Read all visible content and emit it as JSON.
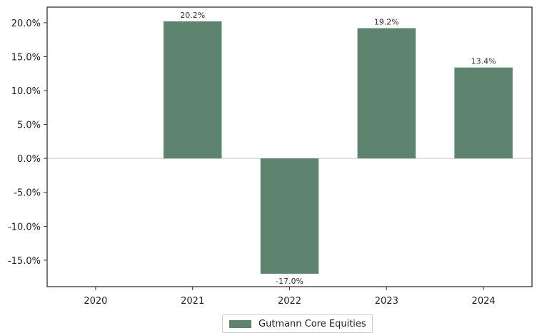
{
  "chart_data": {
    "type": "bar",
    "categories": [
      "2020",
      "2021",
      "2022",
      "2023",
      "2024"
    ],
    "series": [
      {
        "name": "Gutmann Core Equities",
        "values": [
          null,
          20.2,
          -17.0,
          19.2,
          13.4
        ],
        "value_labels": [
          "",
          "20.2%",
          "-17.0%",
          "19.2%",
          "13.4%"
        ]
      }
    ],
    "y_ticks": [
      20,
      15,
      10,
      5,
      0,
      -5,
      -10,
      -15
    ],
    "y_tick_labels": [
      "20.0%",
      "15.0%",
      "10.0%",
      "5.0%",
      "0.0%",
      "-5.0%",
      "-10.0%",
      "-15.0%"
    ],
    "ylim": [
      -18.9,
      22.3
    ],
    "title": "",
    "xlabel": "",
    "ylabel": "",
    "grid": false,
    "zero_line": true,
    "legend_position": "bottom-center",
    "colors": {
      "bar": "#5e8470",
      "axis": "#333333",
      "zero_line": "#d0d0d0",
      "text": "#222222"
    }
  }
}
